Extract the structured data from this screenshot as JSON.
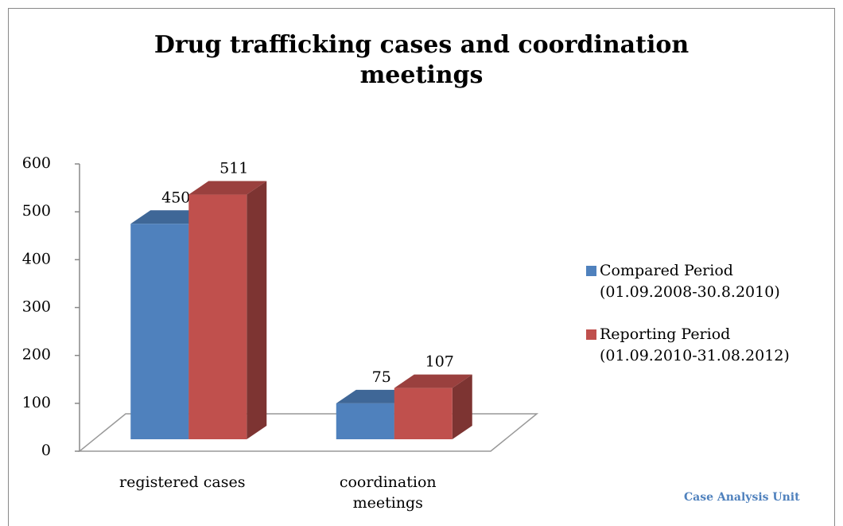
{
  "chart_data": {
    "type": "bar3d",
    "title": "Drug trafficking cases and coordination meetings",
    "categories": [
      "registered cases",
      "coordination meetings"
    ],
    "series": [
      {
        "name": "Compared Period (01.09.2008-30.8.2010)",
        "color": "#4f81bd",
        "values": [
          450,
          75
        ]
      },
      {
        "name": "Reporting Period (01.09.2010-31.08.2012)",
        "color": "#c0504d",
        "values": [
          511,
          107
        ]
      }
    ],
    "ylim": [
      0,
      600
    ],
    "yticks": [
      0,
      100,
      200,
      300,
      400,
      500,
      600
    ],
    "legend": "right",
    "annotation": "Case Analysis Unit"
  }
}
